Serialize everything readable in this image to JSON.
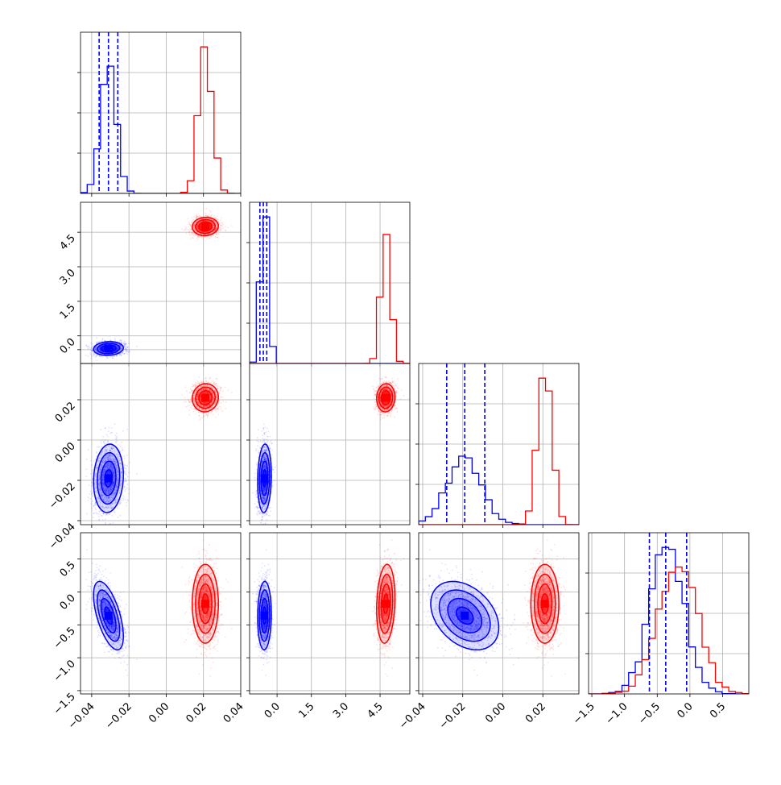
{
  "chart_data": {
    "type": "corner",
    "colors": {
      "blue": "#0000ff",
      "red": "#ff0000"
    },
    "grid": true,
    "parameters": [
      {
        "range": [
          -0.046,
          0.04
        ],
        "ticks": [
          -0.04,
          -0.02,
          0.0,
          0.02,
          0.04
        ],
        "tick_labels": [
          "−0.04",
          "−0.02",
          "0.00",
          "0.02",
          "0.04"
        ]
      },
      {
        "range": [
          -1.2,
          5.8
        ],
        "ticks": [
          0.0,
          1.5,
          3.0,
          4.5
        ],
        "tick_labels": [
          "0.0",
          "1.5",
          "3.0",
          "4.5"
        ],
        "edge_ticks": [
          -0.6,
          0.0,
          1.5,
          3.0,
          4.5
        ],
        "edge_tick_labels": [
          "",
          "0.0",
          "1.5",
          "3.0",
          "4.5"
        ]
      },
      {
        "range": [
          -0.042,
          0.038
        ],
        "ticks": [
          -0.04,
          -0.02,
          0.0,
          0.02
        ],
        "tick_labels": [
          "−0.04",
          "−0.02",
          "0.00",
          "0.02"
        ]
      },
      {
        "range": [
          -1.55,
          0.9
        ],
        "ticks": [
          -1.5,
          -1.0,
          -0.5,
          0.0,
          0.5
        ],
        "tick_labels": [
          "−1.5",
          "−1.0",
          "−0.5",
          "0.0",
          "0.5"
        ]
      }
    ],
    "diag_left_ticks": 4,
    "series": [
      {
        "name": "",
        "color": "#0000ff",
        "mean": [
          -0.031,
          -0.55,
          -0.019,
          -0.36
        ],
        "sd": [
          0.004,
          0.15,
          0.0085,
          0.26
        ],
        "corr": [
          [
            1,
            0.1,
            0.1,
            -0.6
          ],
          [
            0.1,
            1,
            0.1,
            0.05
          ],
          [
            0.1,
            0.1,
            1,
            -0.35
          ],
          [
            -0.6,
            0.05,
            -0.35,
            1
          ]
        ],
        "quantiles": [
          [
            -0.036,
            -0.031,
            -0.026
          ],
          [
            -0.75,
            -0.6,
            -0.45
          ],
          [
            -0.028,
            -0.019,
            -0.009
          ],
          [
            -0.62,
            -0.37,
            -0.05
          ]
        ]
      },
      {
        "name": "",
        "color": "#ff0000",
        "mean": [
          0.021,
          4.75,
          0.021,
          -0.18
        ],
        "sd": [
          0.0035,
          0.2,
          0.0035,
          0.3
        ],
        "corr": [
          [
            1,
            0.05,
            0.05,
            0
          ],
          [
            0.05,
            1,
            0.05,
            0.15
          ],
          [
            0.05,
            0.05,
            1,
            0
          ],
          [
            0,
            0.15,
            0,
            1
          ]
        ],
        "quantiles": []
      }
    ]
  }
}
